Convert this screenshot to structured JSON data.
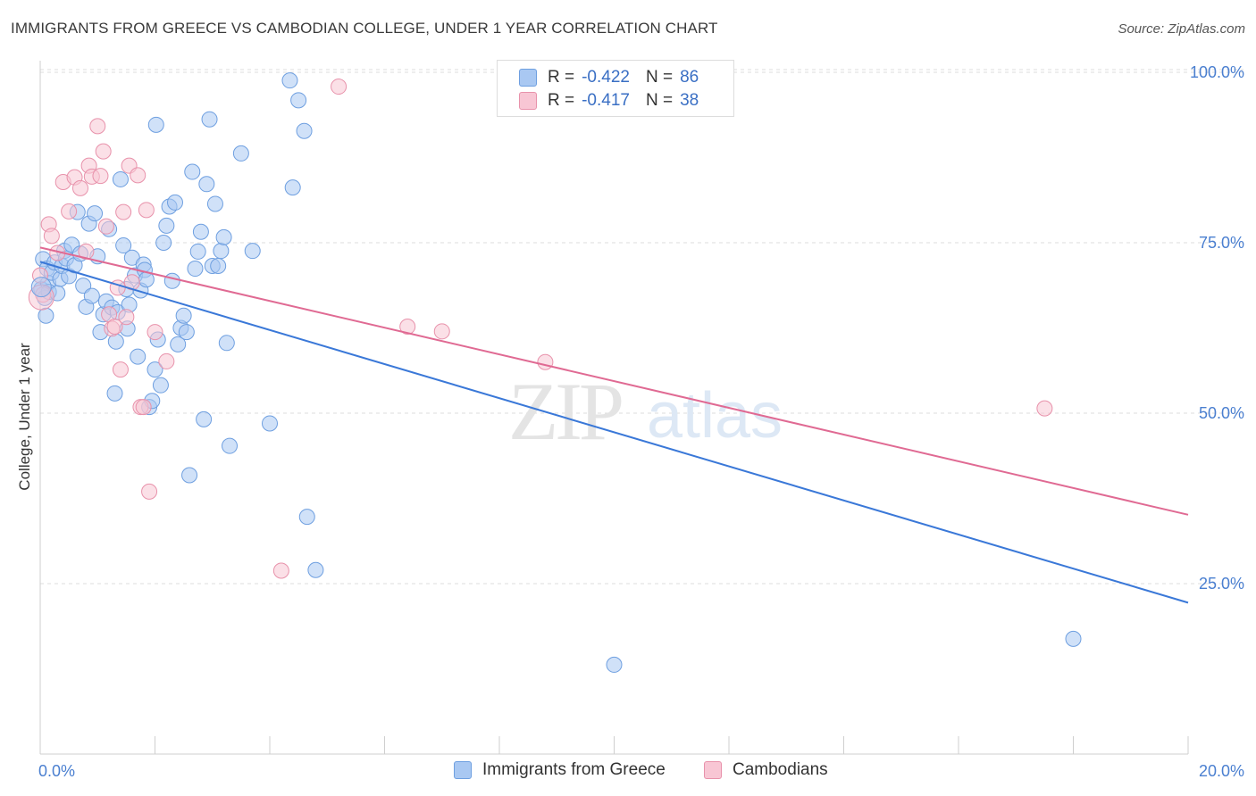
{
  "title": "IMMIGRANTS FROM GREECE VS CAMBODIAN COLLEGE, UNDER 1 YEAR CORRELATION CHART",
  "source": "Source: ZipAtlas.com",
  "watermark": {
    "zip": "ZIP",
    "atlas": "atlas"
  },
  "legend_top": {
    "rows": [
      {
        "r_label": "R =",
        "r_value": "-0.422",
        "n_label": "N =",
        "n_value": "86",
        "color": "#a9c8f2",
        "border": "#6e9fe0"
      },
      {
        "r_label": "R =",
        "r_value": "-0.417",
        "n_label": "N =",
        "n_value": "38",
        "color": "#f8c6d4",
        "border": "#e892ab"
      }
    ]
  },
  "legend_bottom": {
    "items": [
      {
        "label": "Immigrants from Greece",
        "color": "#a9c8f2",
        "border": "#6e9fe0"
      },
      {
        "label": "Cambodians",
        "color": "#f8c6d4",
        "border": "#e892ab"
      }
    ]
  },
  "chart_data": {
    "type": "scatter",
    "title": "IMMIGRANTS FROM GREECE VS CAMBODIAN COLLEGE, UNDER 1 YEAR CORRELATION CHART",
    "xlabel": "",
    "ylabel": "College, Under 1 year",
    "xlim": [
      0,
      20
    ],
    "ylim": [
      0,
      104
    ],
    "x_tick_labels": [
      "0.0%",
      "20.0%"
    ],
    "y_tick_labels": [
      "25.0%",
      "50.0%",
      "75.0%",
      "100.0%"
    ],
    "y_ticks": [
      25,
      50,
      75,
      100
    ],
    "grid": true,
    "legend_placement": "top-center and bottom",
    "series": [
      {
        "name": "Immigrants from Greece",
        "color": "#6e9fe0",
        "fill": "#a9c8f2",
        "trend": {
          "x": [
            0,
            20
          ],
          "y": [
            72.2,
            22.2
          ]
        },
        "points": [
          [
            0.02,
            68.2
          ],
          [
            0.05,
            72.6
          ],
          [
            0.08,
            66.9
          ],
          [
            0.1,
            64.3
          ],
          [
            0.12,
            71.2
          ],
          [
            0.14,
            69.1
          ],
          [
            0.15,
            67.8
          ],
          [
            0.2,
            70.6
          ],
          [
            0.25,
            72.1
          ],
          [
            0.3,
            67.6
          ],
          [
            0.35,
            69.7
          ],
          [
            0.38,
            71.6
          ],
          [
            0.42,
            73.8
          ],
          [
            0.45,
            72.7
          ],
          [
            0.5,
            70.1
          ],
          [
            0.55,
            74.7
          ],
          [
            0.6,
            71.7
          ],
          [
            0.65,
            79.5
          ],
          [
            0.7,
            73.4
          ],
          [
            0.75,
            68.7
          ],
          [
            0.8,
            65.6
          ],
          [
            0.85,
            77.8
          ],
          [
            0.9,
            67.2
          ],
          [
            0.95,
            79.3
          ],
          [
            1.0,
            73.0
          ],
          [
            1.05,
            61.9
          ],
          [
            1.1,
            64.5
          ],
          [
            1.15,
            66.4
          ],
          [
            1.2,
            77.0
          ],
          [
            1.25,
            65.5
          ],
          [
            1.3,
            52.9
          ],
          [
            1.32,
            60.5
          ],
          [
            1.35,
            64.8
          ],
          [
            1.4,
            84.3
          ],
          [
            1.45,
            74.6
          ],
          [
            1.5,
            68.2
          ],
          [
            1.52,
            62.4
          ],
          [
            1.55,
            65.9
          ],
          [
            1.6,
            72.8
          ],
          [
            1.65,
            70.2
          ],
          [
            1.7,
            58.3
          ],
          [
            1.75,
            68.0
          ],
          [
            1.8,
            71.8
          ],
          [
            1.82,
            71.0
          ],
          [
            1.85,
            69.6
          ],
          [
            1.9,
            50.9
          ],
          [
            1.95,
            51.8
          ],
          [
            2.0,
            56.4
          ],
          [
            2.02,
            92.3
          ],
          [
            2.05,
            60.8
          ],
          [
            2.1,
            54.1
          ],
          [
            2.15,
            75.0
          ],
          [
            2.2,
            77.5
          ],
          [
            2.25,
            80.3
          ],
          [
            2.3,
            69.4
          ],
          [
            2.35,
            80.9
          ],
          [
            2.4,
            60.1
          ],
          [
            2.45,
            62.5
          ],
          [
            2.5,
            64.3
          ],
          [
            2.55,
            61.9
          ],
          [
            2.6,
            40.9
          ],
          [
            2.65,
            85.4
          ],
          [
            2.7,
            71.2
          ],
          [
            2.75,
            73.7
          ],
          [
            2.8,
            76.6
          ],
          [
            2.85,
            49.1
          ],
          [
            2.9,
            83.6
          ],
          [
            2.95,
            93.1
          ],
          [
            3.0,
            71.6
          ],
          [
            3.05,
            80.7
          ],
          [
            3.1,
            71.6
          ],
          [
            3.15,
            73.8
          ],
          [
            3.2,
            75.8
          ],
          [
            3.25,
            60.3
          ],
          [
            3.3,
            45.2
          ],
          [
            3.5,
            88.1
          ],
          [
            3.7,
            73.8
          ],
          [
            4.0,
            48.5
          ],
          [
            4.35,
            98.8
          ],
          [
            4.4,
            83.1
          ],
          [
            4.5,
            95.9
          ],
          [
            4.6,
            91.4
          ],
          [
            4.65,
            34.8
          ],
          [
            4.8,
            27.0
          ],
          [
            10.0,
            13.1
          ],
          [
            18.0,
            16.9
          ]
        ]
      },
      {
        "name": "Cambodians",
        "color": "#e892ab",
        "fill": "#f8c6d4",
        "trend": {
          "x": [
            0,
            20
          ],
          "y": [
            74.3,
            35.1
          ]
        },
        "points": [
          [
            0.0,
            70.2
          ],
          [
            0.05,
            67.4
          ],
          [
            0.15,
            77.7
          ],
          [
            0.2,
            76.0
          ],
          [
            0.3,
            73.5
          ],
          [
            0.4,
            83.9
          ],
          [
            0.5,
            79.6
          ],
          [
            0.6,
            84.6
          ],
          [
            0.7,
            83.0
          ],
          [
            0.8,
            73.7
          ],
          [
            0.85,
            86.3
          ],
          [
            0.9,
            84.7
          ],
          [
            1.0,
            92.1
          ],
          [
            1.05,
            84.8
          ],
          [
            1.1,
            88.4
          ],
          [
            1.15,
            77.4
          ],
          [
            1.2,
            64.5
          ],
          [
            1.25,
            62.4
          ],
          [
            1.3,
            62.7
          ],
          [
            1.35,
            68.4
          ],
          [
            1.4,
            56.4
          ],
          [
            1.45,
            79.5
          ],
          [
            1.5,
            64.1
          ],
          [
            1.55,
            86.3
          ],
          [
            1.6,
            69.2
          ],
          [
            1.7,
            84.9
          ],
          [
            1.75,
            50.9
          ],
          [
            1.8,
            50.9
          ],
          [
            1.85,
            79.8
          ],
          [
            1.9,
            38.5
          ],
          [
            2.0,
            61.9
          ],
          [
            2.2,
            57.6
          ],
          [
            4.2,
            26.9
          ],
          [
            5.2,
            97.9
          ],
          [
            6.4,
            62.7
          ],
          [
            7.0,
            62.0
          ],
          [
            8.8,
            57.5
          ],
          [
            17.5,
            50.7
          ]
        ]
      }
    ]
  }
}
